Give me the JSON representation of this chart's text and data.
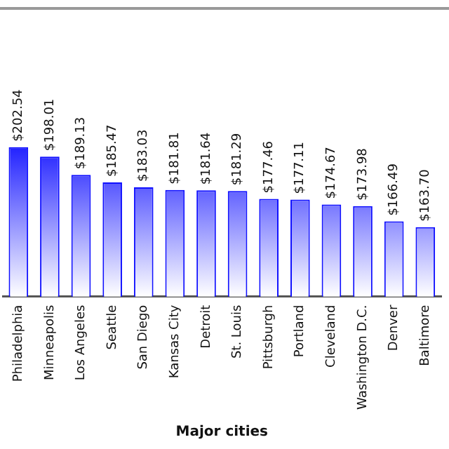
{
  "chart_data": {
    "type": "bar",
    "xlabel": "Major cities",
    "categories": [
      "Philadelphia",
      "Minneapolis",
      "Los Angeles",
      "Seattle",
      "San Diego",
      "Kansas City",
      "Detroit",
      "St. Louis",
      "Pittsburgh",
      "Portland",
      "Cleveland",
      "Washington D.C.",
      "Denver",
      "Baltimore"
    ],
    "values": [
      202.54,
      198.01,
      189.13,
      185.47,
      183.03,
      181.81,
      181.64,
      181.29,
      177.46,
      177.11,
      174.67,
      173.98,
      166.49,
      163.7
    ],
    "value_labels": [
      "$202.54",
      "$198.01",
      "$189.13",
      "$185.47",
      "$183.03",
      "$181.81",
      "$181.64",
      "$181.29",
      "$177.46",
      "$177.11",
      "$174.67",
      "$173.98",
      "$166.49",
      "$163.70"
    ],
    "color": "#1010ff",
    "ylim": [
      130,
      270
    ],
    "tick_labels": "x",
    "grid": false,
    "legend": false
  }
}
